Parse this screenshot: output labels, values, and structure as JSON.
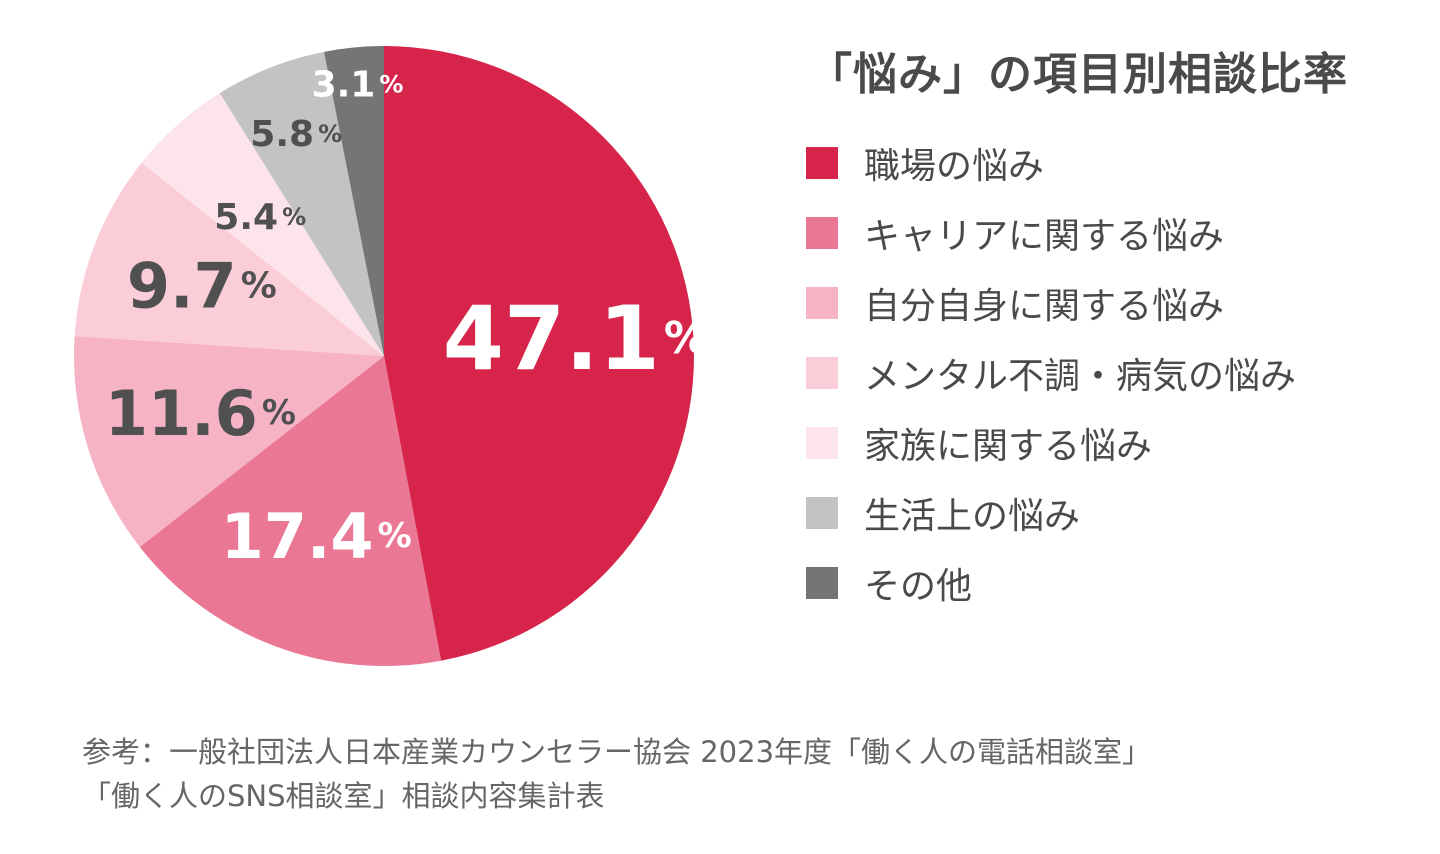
{
  "chart_data": {
    "type": "pie",
    "title": "「悩み」の項目別相談比率",
    "legend_position": "right",
    "slices": [
      {
        "label": "職場の悩み",
        "value": 47.1,
        "color": "#d6244a",
        "text_color": "#ffffff",
        "value_text": "47.1",
        "unit": "%"
      },
      {
        "label": "キャリアに関する悩み",
        "value": 17.4,
        "color": "#ea7895",
        "text_color": "#ffffff",
        "value_text": "17.4",
        "unit": "%"
      },
      {
        "label": "自分自身に関する悩み",
        "value": 11.6,
        "color": "#f7b3c6",
        "text_color": "#505050",
        "value_text": "11.6",
        "unit": "%"
      },
      {
        "label": "メンタル不調・病気の悩み",
        "value": 9.7,
        "color": "#fbcdd8",
        "text_color": "#505050",
        "value_text": "9.7",
        "unit": "%"
      },
      {
        "label": "家族に関する悩み",
        "value": 5.4,
        "color": "#fde4ea",
        "text_color": "#505050",
        "value_text": "5.4",
        "unit": "%"
      },
      {
        "label": "生活上の悩み",
        "value": 5.8,
        "color": "#c3c3c3",
        "text_color": "#505050",
        "value_text": "5.8",
        "unit": "%"
      },
      {
        "label": "その他",
        "value": 3.1,
        "color": "#757575",
        "text_color": "#ffffff",
        "value_text": "3.1",
        "unit": "%"
      }
    ]
  },
  "footnote": {
    "line1": "参考：一般社団法人日本産業カウンセラー協会 2023年度「働く人の電話相談室」",
    "line2": "「働く人のSNS相談室」相談内容集計表"
  }
}
